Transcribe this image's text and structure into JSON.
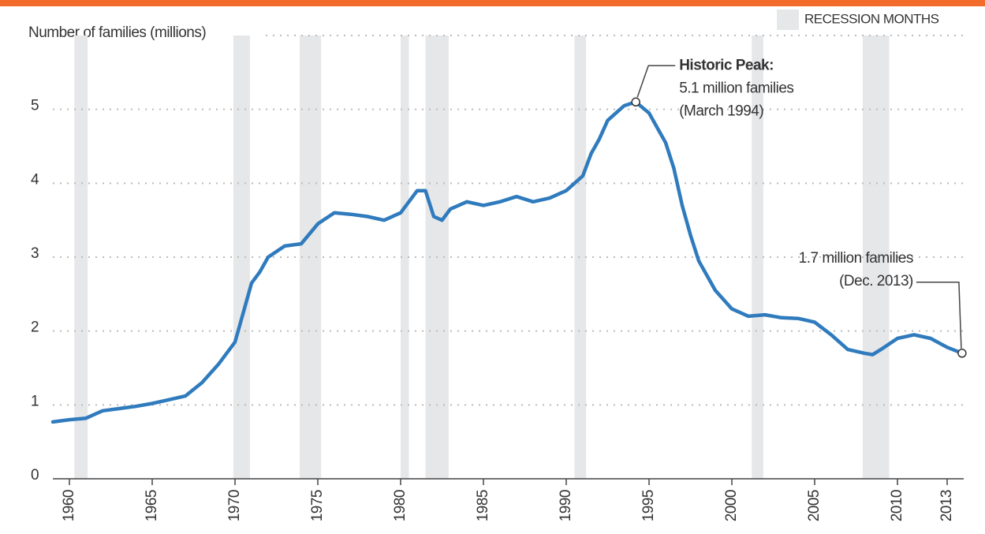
{
  "chart_data": {
    "type": "line",
    "y_label": "Number of families (millions)",
    "legend_label": "RECESSION MONTHS",
    "recession_color": "#e6e7e9",
    "recessions": [
      [
        1960.3,
        1961.1
      ],
      [
        1969.9,
        1970.9
      ],
      [
        1973.9,
        1975.2
      ],
      [
        1980.0,
        1980.5
      ],
      [
        1981.5,
        1982.9
      ],
      [
        1990.5,
        1991.2
      ],
      [
        2001.2,
        2001.9
      ],
      [
        2007.9,
        2009.5
      ]
    ],
    "xlim": [
      1959,
      2014
    ],
    "xticks": [
      1960,
      1965,
      1970,
      1975,
      1980,
      1985,
      1990,
      1995,
      2000,
      2005,
      2010,
      2013
    ],
    "ylim": [
      0,
      6
    ],
    "yticks": [
      0,
      1,
      2,
      3,
      4,
      5
    ],
    "grid": true,
    "series": [
      {
        "color": "#2f7bbd",
        "x": [
          1959,
          1960,
          1961,
          1962,
          1963,
          1964,
          1965,
          1966,
          1967,
          1968,
          1969,
          1970,
          1970.5,
          1971,
          1971.5,
          1972,
          1973,
          1974,
          1975,
          1976,
          1977,
          1978,
          1979,
          1980,
          1980.5,
          1981,
          1981.5,
          1982,
          1982.5,
          1983,
          1984,
          1985,
          1986,
          1987,
          1988,
          1989,
          1990,
          1991,
          1991.5,
          1992,
          1992.5,
          1993,
          1993.5,
          1994.2,
          1995,
          1995.5,
          1996,
          1996.5,
          1997,
          1997.5,
          1998,
          1998.5,
          1999,
          2000,
          2001,
          2002,
          2003,
          2004,
          2005,
          2006,
          2007,
          2008,
          2008.5,
          2009,
          2010,
          2011,
          2012,
          2013,
          2013.9
        ],
        "values": [
          0.77,
          0.8,
          0.82,
          0.92,
          0.95,
          0.98,
          1.02,
          1.07,
          1.12,
          1.3,
          1.55,
          1.85,
          2.25,
          2.65,
          2.8,
          3.0,
          3.15,
          3.18,
          3.45,
          3.6,
          3.58,
          3.55,
          3.5,
          3.6,
          3.75,
          3.9,
          3.9,
          3.55,
          3.5,
          3.65,
          3.75,
          3.7,
          3.75,
          3.82,
          3.75,
          3.8,
          3.9,
          4.1,
          4.4,
          4.6,
          4.85,
          4.95,
          5.05,
          5.1,
          4.95,
          4.75,
          4.55,
          4.2,
          3.7,
          3.3,
          2.95,
          2.75,
          2.55,
          2.3,
          2.2,
          2.22,
          2.18,
          2.17,
          2.12,
          1.95,
          1.75,
          1.7,
          1.68,
          1.75,
          1.9,
          1.95,
          1.9,
          1.78,
          1.7
        ]
      }
    ],
    "annotations": [
      {
        "x": 1994.2,
        "y": 5.1,
        "lines": [
          "Historic Peak:",
          "5.1 million families",
          "(March 1994)"
        ]
      },
      {
        "x": 2013.9,
        "y": 1.7,
        "lines": [
          "1.7 million families",
          "(Dec. 2013)"
        ]
      }
    ]
  }
}
